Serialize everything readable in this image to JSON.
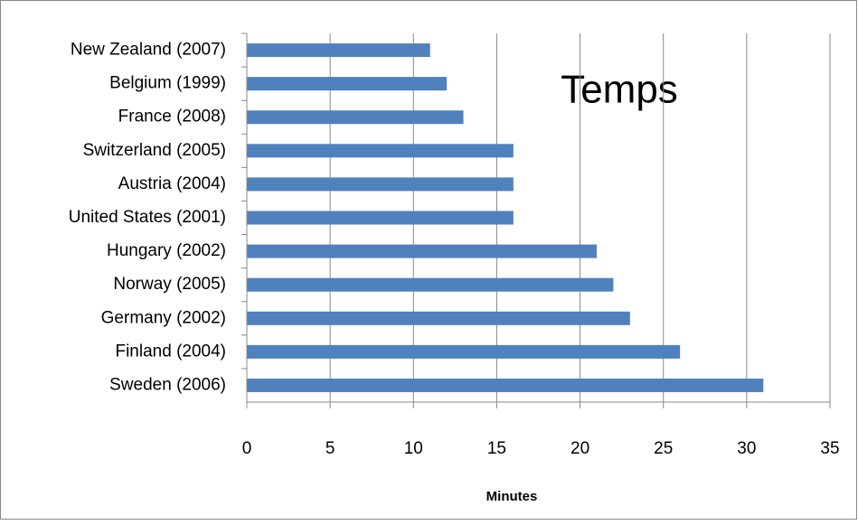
{
  "chart_data": {
    "type": "bar",
    "orientation": "horizontal",
    "title": "Temps",
    "x_label": "Minutes",
    "categories": [
      "New Zealand (2007)",
      "Belgium (1999)",
      "France (2008)",
      "Switzerland (2005)",
      "Austria (2004)",
      "United States (2001)",
      "Hungary (2002)",
      "Norway (2005)",
      "Germany (2002)",
      "Finland (2004)",
      "Sweden (2006)"
    ],
    "values": [
      11,
      12,
      13,
      16,
      16,
      16,
      21,
      22,
      23,
      26,
      31
    ],
    "color": "#4f81bd",
    "xlim": [
      0,
      35
    ],
    "xticks": [
      0,
      5,
      10,
      15,
      20,
      25,
      30,
      35
    ],
    "grid": true
  }
}
